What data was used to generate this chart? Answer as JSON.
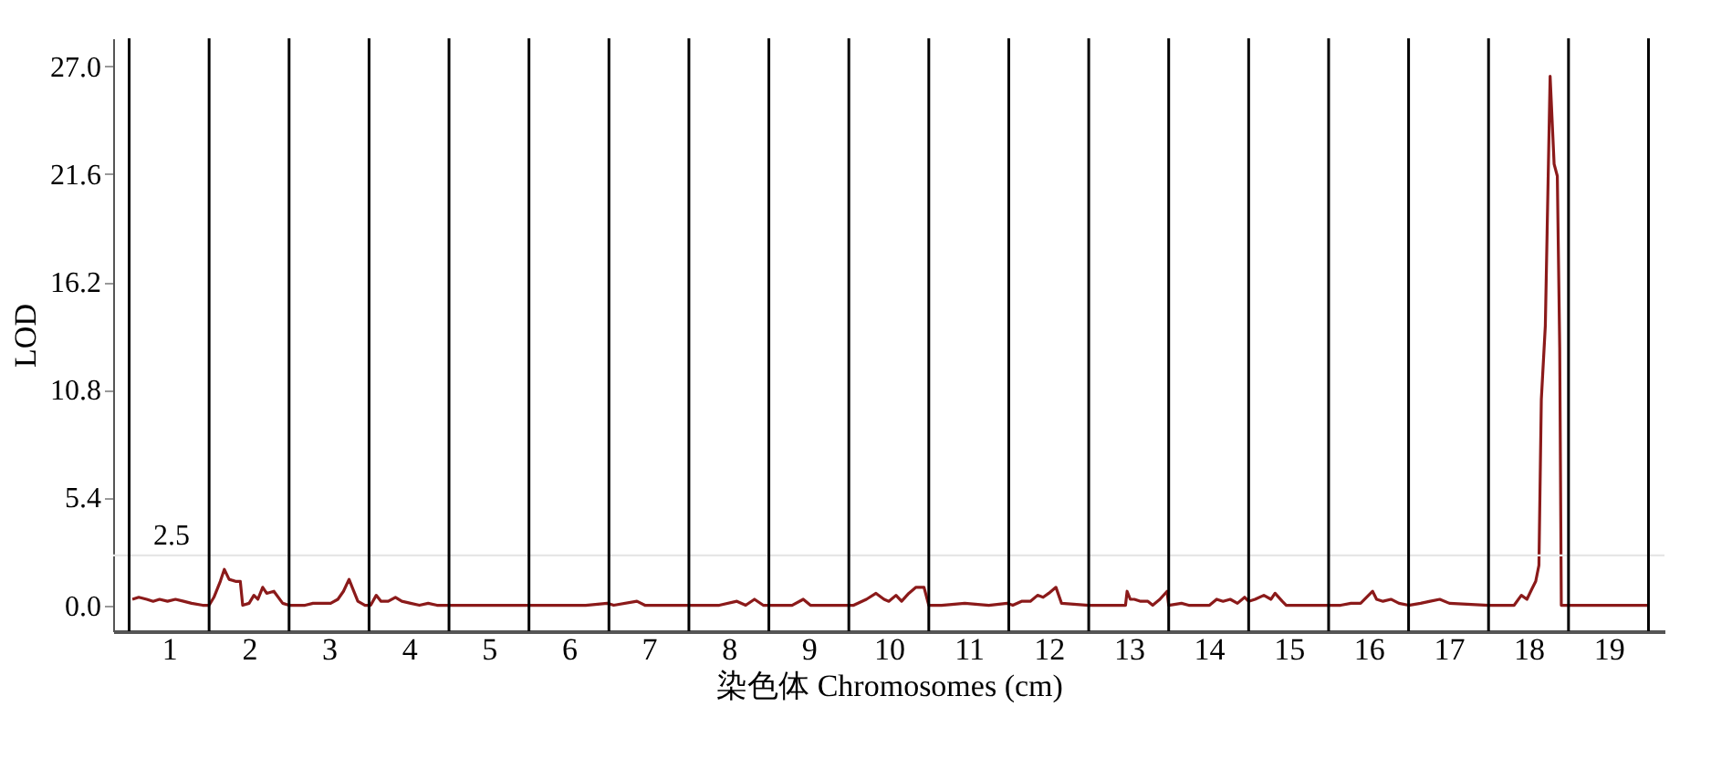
{
  "chart_data": {
    "type": "line",
    "xlabel": "染色体 Chromosomes (cm)",
    "ylabel": "LOD",
    "xlim": [
      0.3,
      19.7
    ],
    "ylim": [
      -1.3,
      28.4
    ],
    "xticks": [
      1,
      2,
      3,
      4,
      5,
      6,
      7,
      8,
      9,
      10,
      11,
      12,
      13,
      14,
      15,
      16,
      17,
      18,
      19
    ],
    "yticks": [
      {
        "value": 0,
        "label": "0.0"
      },
      {
        "value": 5.4,
        "label": "5.4"
      },
      {
        "value": 10.8,
        "label": "10.8"
      },
      {
        "value": 16.2,
        "label": "16.2"
      },
      {
        "value": 21.6,
        "label": "21.6"
      },
      {
        "value": 27,
        "label": "27.0"
      }
    ],
    "grid": false,
    "marker": "none",
    "line_style": "solid",
    "series": [
      {
        "color": "#8b1a1a",
        "x": [
          0.54,
          0.62,
          0.72,
          0.8,
          0.88,
          0.98,
          1.08,
          1.18,
          1.28,
          1.42,
          1.5,
          1.56,
          1.64,
          1.69,
          1.75,
          1.83,
          1.89,
          1.92,
          2.0,
          2.06,
          2.11,
          2.17,
          2.22,
          2.31,
          2.42,
          2.5,
          2.7,
          2.8,
          3.02,
          3.11,
          3.18,
          3.25,
          3.3,
          3.36,
          3.45,
          3.52,
          3.59,
          3.65,
          3.74,
          3.83,
          3.91,
          4.02,
          4.13,
          4.24,
          4.35,
          4.5,
          5.18,
          5.6,
          5.96,
          6.21,
          6.48,
          6.56,
          6.85,
          6.95,
          7.44,
          7.54,
          7.88,
          8.1,
          8.21,
          8.32,
          8.43,
          8.55,
          8.79,
          8.93,
          9.02,
          9.38,
          9.56,
          9.72,
          9.84,
          9.94,
          10.0,
          10.09,
          10.16,
          10.25,
          10.34,
          10.44,
          10.5,
          10.66,
          10.95,
          11.25,
          11.48,
          11.55,
          11.66,
          11.77,
          11.86,
          11.93,
          12.0,
          12.09,
          12.16,
          12.5,
          12.65,
          12.96,
          12.98,
          13.02,
          13.07,
          13.15,
          13.24,
          13.3,
          13.39,
          13.48,
          13.5,
          13.66,
          13.75,
          14.01,
          14.1,
          14.18,
          14.27,
          14.36,
          14.45,
          14.5,
          14.58,
          14.69,
          14.78,
          14.83,
          14.92,
          14.97,
          15.5,
          15.65,
          15.78,
          15.9,
          16.05,
          16.1,
          16.18,
          16.28,
          16.38,
          16.5,
          16.65,
          16.77,
          16.89,
          17.01,
          17.5,
          17.68,
          17.82,
          17.91,
          17.98,
          18.04,
          18.09,
          18.13,
          18.16,
          18.21,
          18.27,
          18.32,
          18.36,
          18.39,
          18.41,
          18.5,
          19.0,
          19.5
        ],
        "values": [
          0.3,
          0.4,
          0.3,
          0.2,
          0.3,
          0.2,
          0.3,
          0.2,
          0.1,
          0.0,
          0.0,
          0.4,
          1.2,
          1.8,
          1.3,
          1.2,
          1.2,
          0.0,
          0.1,
          0.5,
          0.3,
          0.9,
          0.6,
          0.7,
          0.1,
          0.0,
          0.0,
          0.1,
          0.1,
          0.3,
          0.7,
          1.3,
          0.8,
          0.2,
          0.0,
          0.0,
          0.5,
          0.2,
          0.2,
          0.4,
          0.2,
          0.1,
          0.0,
          0.1,
          0.0,
          0.0,
          0.0,
          0.0,
          0.0,
          0.0,
          0.1,
          0.0,
          0.2,
          0.0,
          0.0,
          0.0,
          0.0,
          0.2,
          0.0,
          0.3,
          0.0,
          0.0,
          0.0,
          0.3,
          0.0,
          0.0,
          0.0,
          0.3,
          0.6,
          0.3,
          0.2,
          0.5,
          0.2,
          0.6,
          0.9,
          0.9,
          0.0,
          0.0,
          0.1,
          0.0,
          0.1,
          0.0,
          0.2,
          0.2,
          0.5,
          0.4,
          0.6,
          0.9,
          0.1,
          0.0,
          0.0,
          0.0,
          0.7,
          0.3,
          0.3,
          0.2,
          0.2,
          0.0,
          0.3,
          0.7,
          0.0,
          0.1,
          0.0,
          0.0,
          0.3,
          0.2,
          0.3,
          0.1,
          0.4,
          0.2,
          0.3,
          0.5,
          0.3,
          0.6,
          0.2,
          0.0,
          0.0,
          0.0,
          0.1,
          0.1,
          0.7,
          0.3,
          0.2,
          0.3,
          0.1,
          0.0,
          0.1,
          0.2,
          0.3,
          0.1,
          0.0,
          0.0,
          0.0,
          0.5,
          0.3,
          0.8,
          1.2,
          2.0,
          10.3,
          14.0,
          26.5,
          22.1,
          21.5,
          12.9,
          0.0,
          0.0,
          0.0,
          0.0
        ]
      }
    ],
    "ref_lines": [
      {
        "axis": "y",
        "value": 2.5,
        "label": "2.5",
        "color": "#e6e6e6"
      },
      {
        "axis": "x",
        "value": 0.5,
        "color": "#000000"
      },
      {
        "axis": "x",
        "value": 1.5,
        "color": "#000000"
      },
      {
        "axis": "x",
        "value": 2.5,
        "color": "#000000"
      },
      {
        "axis": "x",
        "value": 3.5,
        "color": "#000000"
      },
      {
        "axis": "x",
        "value": 4.5,
        "color": "#000000"
      },
      {
        "axis": "x",
        "value": 5.5,
        "color": "#000000"
      },
      {
        "axis": "x",
        "value": 6.5,
        "color": "#000000"
      },
      {
        "axis": "x",
        "value": 7.5,
        "color": "#000000"
      },
      {
        "axis": "x",
        "value": 8.5,
        "color": "#000000"
      },
      {
        "axis": "x",
        "value": 9.5,
        "color": "#000000"
      },
      {
        "axis": "x",
        "value": 10.5,
        "color": "#000000"
      },
      {
        "axis": "x",
        "value": 11.5,
        "color": "#000000"
      },
      {
        "axis": "x",
        "value": 12.5,
        "color": "#000000"
      },
      {
        "axis": "x",
        "value": 13.5,
        "color": "#000000"
      },
      {
        "axis": "x",
        "value": 14.5,
        "color": "#000000"
      },
      {
        "axis": "x",
        "value": 15.5,
        "color": "#000000"
      },
      {
        "axis": "x",
        "value": 16.5,
        "color": "#000000"
      },
      {
        "axis": "x",
        "value": 17.5,
        "color": "#000000"
      },
      {
        "axis": "x",
        "value": 18.5,
        "color": "#000000"
      },
      {
        "axis": "x",
        "value": 19.5,
        "color": "#000000"
      }
    ]
  }
}
